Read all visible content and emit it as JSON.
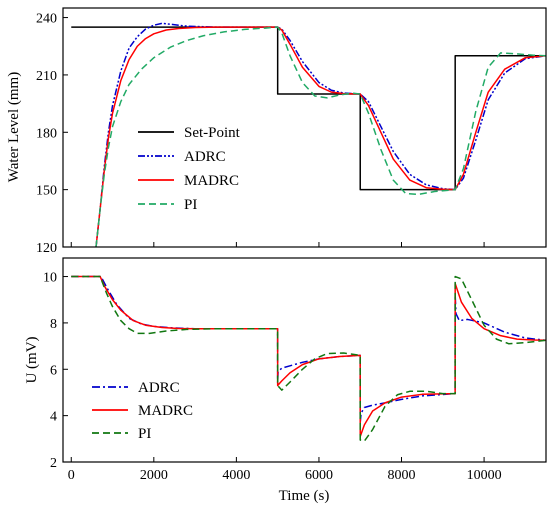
{
  "chart_data": [
    {
      "type": "line",
      "ylabel": "Water Level (mm)",
      "xlim": [
        -200,
        11500
      ],
      "ylim": [
        120,
        245
      ],
      "xticks": [
        0,
        2000,
        4000,
        6000,
        8000,
        10000
      ],
      "yticks": [
        120,
        150,
        180,
        210,
        240
      ],
      "ytick_labels": [
        "120",
        "150",
        "180",
        "210",
        "240"
      ],
      "show_x_tick_labels": false,
      "legend_position": "center-left",
      "series": [
        {
          "name": "Set-Point",
          "color": "#000000",
          "dash": "solid",
          "x": [
            0,
            5000,
            5000,
            7000,
            7000,
            9300,
            9300,
            11500
          ],
          "y": [
            235,
            235,
            200,
            200,
            150,
            150,
            220,
            220
          ]
        },
        {
          "name": "ADRC",
          "color": "#0000cc",
          "dash": "dashdotdot",
          "x": [
            600,
            700,
            800,
            900,
            1000,
            1200,
            1400,
            1600,
            1800,
            2000,
            2200,
            2400,
            2800,
            3500,
            4500,
            5000,
            5100,
            5300,
            5600,
            6000,
            6300,
            6600,
            7000,
            7200,
            7500,
            7800,
            8200,
            8600,
            9000,
            9300,
            9500,
            9800,
            10100,
            10500,
            11000,
            11500
          ],
          "y": [
            120,
            140,
            162,
            180,
            194,
            212,
            224,
            230,
            234,
            236,
            237,
            236.5,
            235.5,
            235,
            235,
            235,
            234,
            228,
            217,
            206,
            202,
            200.5,
            200,
            196,
            183,
            170,
            158,
            152.5,
            150.5,
            150,
            156,
            176,
            197,
            211,
            218.5,
            220
          ]
        },
        {
          "name": "MADRC",
          "color": "#ff0000",
          "dash": "solid",
          "x": [
            600,
            700,
            800,
            900,
            1000,
            1200,
            1400,
            1600,
            1800,
            2000,
            2300,
            2600,
            3000,
            3500,
            4500,
            5000,
            5100,
            5300,
            5600,
            6000,
            6300,
            6600,
            7000,
            7200,
            7500,
            7800,
            8200,
            8600,
            9000,
            9300,
            9500,
            9800,
            10100,
            10500,
            11000,
            11500
          ],
          "y": [
            120,
            140,
            160,
            177,
            190,
            207,
            218,
            225,
            229,
            231.5,
            233.5,
            234.3,
            234.8,
            235,
            235,
            235,
            233.5,
            226,
            214,
            204,
            201,
            200.2,
            200,
            194,
            180,
            166,
            155,
            151,
            150.2,
            150,
            158,
            180,
            201,
            213,
            219,
            220
          ]
        },
        {
          "name": "PI",
          "color": "#22aa66",
          "dash": "dashed",
          "x": [
            600,
            700,
            800,
            900,
            1000,
            1200,
            1400,
            1700,
            2000,
            2400,
            2800,
            3200,
            3700,
            4200,
            4700,
            5000,
            5100,
            5300,
            5600,
            5900,
            6200,
            6500,
            6800,
            7000,
            7200,
            7500,
            7800,
            8100,
            8400,
            8800,
            9300,
            9500,
            9800,
            10100,
            10400,
            10800,
            11200,
            11500
          ],
          "y": [
            120,
            140,
            158,
            172,
            183,
            196,
            205,
            213,
            219,
            224.5,
            228,
            230.5,
            232.5,
            233.8,
            234.5,
            235,
            232,
            220,
            206,
            199,
            198,
            199.5,
            200.5,
            200,
            190,
            171,
            155,
            148,
            147.5,
            149,
            150,
            161,
            191,
            214,
            221.5,
            221,
            220.3,
            220
          ]
        }
      ]
    },
    {
      "type": "line",
      "xlabel": "Time (s)",
      "ylabel": "U (mV)",
      "xlim": [
        -200,
        11500
      ],
      "ylim": [
        2,
        10.8
      ],
      "xticks": [
        0,
        2000,
        4000,
        6000,
        8000,
        10000
      ],
      "xtick_labels": [
        "0",
        "2000",
        "4000",
        "6000",
        "8000",
        "10000"
      ],
      "yticks": [
        2,
        4,
        6,
        8,
        10
      ],
      "ytick_labels": [
        "2",
        "4",
        "6",
        "8",
        "10"
      ],
      "legend_position": "bottom-left",
      "series": [
        {
          "name": "ADRC",
          "color": "#0000cc",
          "dash": "dashdot",
          "x": [
            0,
            700,
            750,
            900,
            1100,
            1400,
            1700,
            2000,
            2500,
            3000,
            4000,
            4999,
            5000,
            5010,
            5100,
            5300,
            5600,
            6000,
            6500,
            6999,
            7000,
            7020,
            7100,
            7300,
            7600,
            8000,
            8500,
            9299,
            9300,
            9320,
            9400,
            9600,
            10000,
            10500,
            11000,
            11500
          ],
          "y": [
            10,
            10,
            9.9,
            9.4,
            8.8,
            8.2,
            7.95,
            7.85,
            7.78,
            7.75,
            7.75,
            7.75,
            5.4,
            5.9,
            6.05,
            6.15,
            6.3,
            6.45,
            6.55,
            6.6,
            3.7,
            4.1,
            4.35,
            4.45,
            4.55,
            4.7,
            4.85,
            4.95,
            9.2,
            8.4,
            8.1,
            8.15,
            8.0,
            7.6,
            7.35,
            7.25
          ]
        },
        {
          "name": "MADRC",
          "color": "#ff0000",
          "dash": "solid",
          "x": [
            0,
            700,
            800,
            1000,
            1200,
            1500,
            1800,
            2200,
            2600,
            3000,
            4000,
            4999,
            5000,
            5100,
            5300,
            5600,
            6000,
            6500,
            6999,
            7000,
            7100,
            7300,
            7600,
            8000,
            8500,
            9299,
            9300,
            9450,
            9700,
            10000,
            10400,
            10800,
            11200,
            11500
          ],
          "y": [
            10,
            10,
            9.6,
            9.0,
            8.55,
            8.1,
            7.9,
            7.8,
            7.76,
            7.75,
            7.75,
            7.75,
            5.3,
            5.5,
            5.85,
            6.2,
            6.45,
            6.55,
            6.6,
            3.1,
            3.6,
            4.2,
            4.55,
            4.8,
            4.92,
            4.95,
            9.7,
            8.9,
            8.2,
            7.75,
            7.45,
            7.3,
            7.26,
            7.25
          ]
        },
        {
          "name": "PI",
          "color": "#117711",
          "dash": "dashed",
          "x": [
            0,
            700,
            850,
            1000,
            1200,
            1400,
            1600,
            1900,
            2300,
            2800,
            3500,
            4000,
            4999,
            5000,
            5100,
            5300,
            5600,
            5900,
            6200,
            6600,
            6999,
            7000,
            7100,
            7300,
            7600,
            7900,
            8200,
            8600,
            9000,
            9299,
            9300,
            9450,
            9700,
            10000,
            10300,
            10600,
            11000,
            11500
          ],
          "y": [
            10,
            10,
            9.3,
            8.7,
            8.1,
            7.75,
            7.55,
            7.55,
            7.65,
            7.72,
            7.75,
            7.75,
            7.75,
            5.3,
            5.1,
            5.45,
            6.0,
            6.45,
            6.68,
            6.7,
            6.6,
            2.95,
            2.9,
            3.4,
            4.4,
            4.9,
            5.05,
            5.05,
            4.95,
            4.95,
            10.0,
            9.9,
            9.0,
            7.9,
            7.3,
            7.1,
            7.15,
            7.25
          ]
        }
      ]
    }
  ]
}
